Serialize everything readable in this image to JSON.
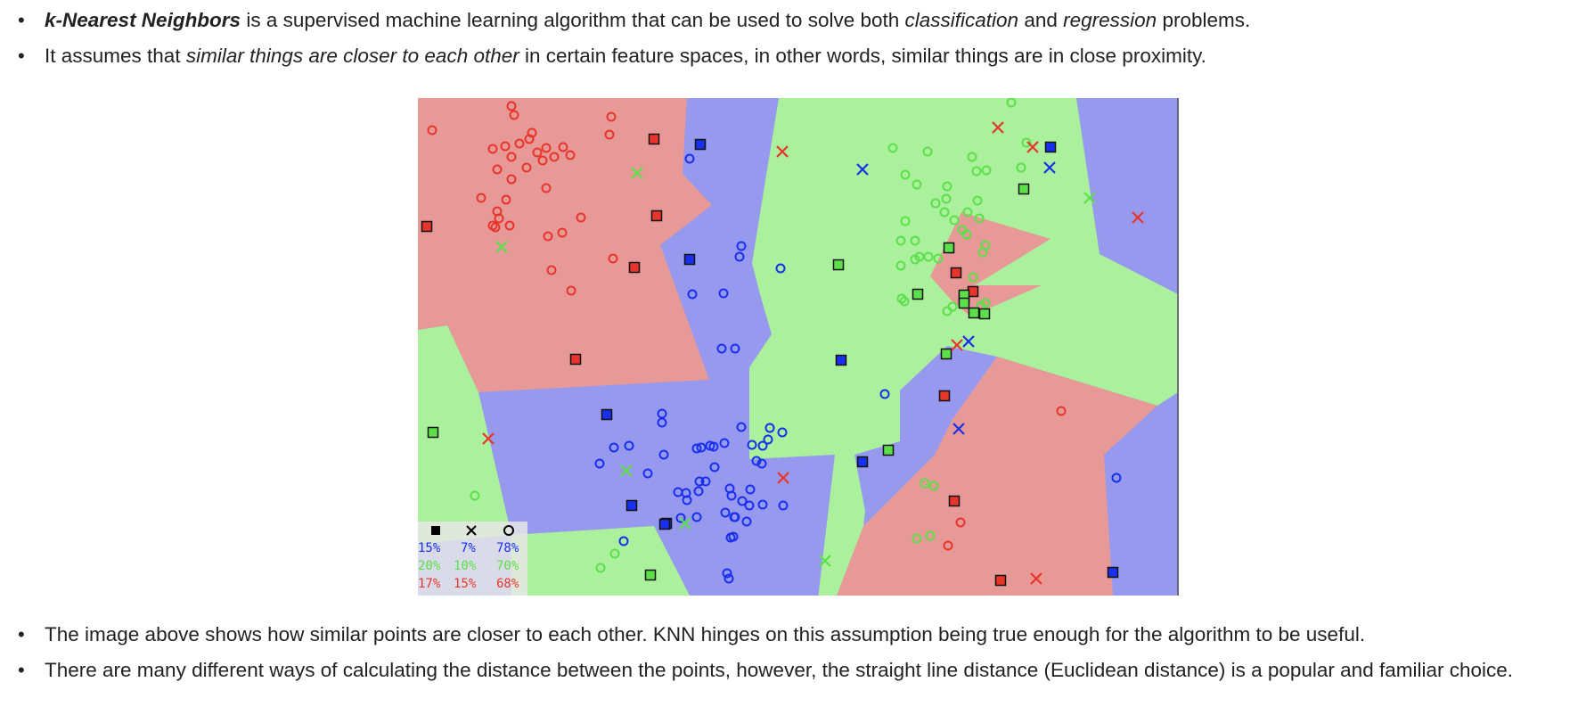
{
  "intro_bullets": {
    "b1": {
      "term": "k-Nearest Neighbors",
      "text_1": " is a supervised machine learning algorithm that can be used to solve both ",
      "em_1": "classification",
      "text_2": " and ",
      "em_2": "regression",
      "text_3": " problems."
    },
    "b2": {
      "text_1": "It assumes that ",
      "em_1": "similar things are closer to each other",
      "text_2": " in certain feature spaces, in other words, similar things are in close proximity."
    }
  },
  "outro_bullets": {
    "b3": {
      "text": "The image above shows how similar points are closer to each other. KNN hinges on this assumption being true enough for the algorithm to be useful."
    },
    "b4": {
      "text": "There are many different ways of calculating the distance between the points, however, the straight line distance (Euclidean distance) is a popular and familiar choice."
    }
  },
  "figure": {
    "colors": {
      "red_region": "#e69996",
      "blue_region": "#9699ee",
      "green_region": "#abf09c",
      "red": "#e8352b",
      "blue": "#1830ee",
      "green": "#5ce04a"
    },
    "legend": {
      "marker_icons": [
        "filled-square-icon",
        "cross-icon",
        "circle-icon"
      ],
      "rows": [
        {
          "color": "#1830ee",
          "values": [
            "15%",
            "7%",
            "78%"
          ]
        },
        {
          "color": "#5ce04a",
          "values": [
            "20%",
            "10%",
            "70%"
          ]
        },
        {
          "color": "#e8352b",
          "values": [
            "17%",
            "15%",
            "68%"
          ]
        }
      ]
    }
  }
}
